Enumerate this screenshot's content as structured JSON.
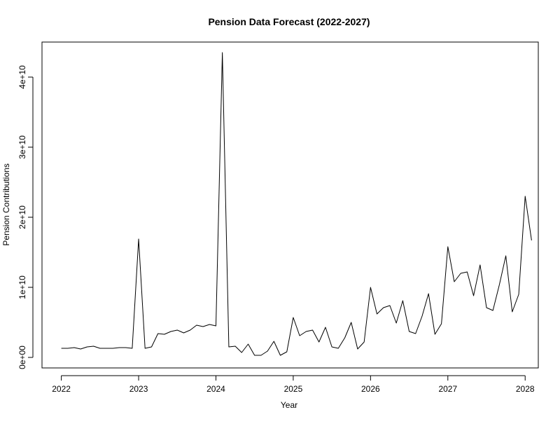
{
  "chart_data": {
    "type": "line",
    "title": "Pension Data Forecast (2022-2027)",
    "xlabel": "Year",
    "ylabel": "Pension Contributions",
    "xlim": [
      2021.75,
      2028.17
    ],
    "ylim": [
      -1500000000,
      45000000000
    ],
    "grid": false,
    "legend": "none",
    "line_color": "#000000",
    "x_ticks": [
      2022,
      2023,
      2024,
      2025,
      2026,
      2027,
      2028
    ],
    "x_tick_labels": [
      "2022",
      "2023",
      "2024",
      "2025",
      "2026",
      "2027",
      "2028"
    ],
    "y_ticks": [
      0,
      10000000000,
      20000000000,
      30000000000,
      40000000000
    ],
    "y_tick_labels": [
      "0e+00",
      "1e+10",
      "2e+10",
      "3e+10",
      "4e+10"
    ],
    "series": [
      {
        "x": [
          2022.0,
          2022.083,
          2022.167,
          2022.25,
          2022.333,
          2022.417,
          2022.5,
          2022.583,
          2022.667,
          2022.75,
          2022.833,
          2022.917,
          2023.0,
          2023.083,
          2023.167,
          2023.25,
          2023.333,
          2023.417,
          2023.5,
          2023.583,
          2023.667,
          2023.75,
          2023.833,
          2023.917,
          2024.0,
          2024.083,
          2024.167,
          2024.25,
          2024.333,
          2024.417,
          2024.5,
          2024.583,
          2024.667,
          2024.75,
          2024.833,
          2024.917,
          2025.0,
          2025.083,
          2025.167,
          2025.25,
          2025.333,
          2025.417,
          2025.5,
          2025.583,
          2025.667,
          2025.75,
          2025.833,
          2025.917,
          2026.0,
          2026.083,
          2026.167,
          2026.25,
          2026.333,
          2026.417,
          2026.5,
          2026.583,
          2026.667,
          2026.75,
          2026.833,
          2026.917,
          2027.0,
          2027.083,
          2027.167,
          2027.25,
          2027.333,
          2027.417,
          2027.5,
          2027.583,
          2027.667,
          2027.75,
          2027.833,
          2027.917,
          2028.0,
          2028.083
        ],
        "y": [
          1300000000,
          1300000000,
          1400000000,
          1200000000,
          1500000000,
          1600000000,
          1300000000,
          1300000000,
          1300000000,
          1400000000,
          1400000000,
          1300000000,
          16900000000,
          1300000000,
          1500000000,
          3400000000,
          3300000000,
          3700000000,
          3900000000,
          3500000000,
          3900000000,
          4600000000,
          4400000000,
          4700000000,
          4500000000,
          43500000000,
          1500000000,
          1600000000,
          700000000,
          1900000000,
          300000000,
          300000000,
          900000000,
          2300000000,
          300000000,
          800000000,
          5700000000,
          3100000000,
          3700000000,
          3900000000,
          2200000000,
          4300000000,
          1500000000,
          1300000000,
          2800000000,
          5000000000,
          1200000000,
          2200000000,
          10000000000,
          6200000000,
          7100000000,
          7400000000,
          4900000000,
          8100000000,
          3700000000,
          3400000000,
          5900000000,
          9100000000,
          3300000000,
          4800000000,
          15800000000,
          10800000000,
          12000000000,
          12200000000,
          8800000000,
          13200000000,
          7100000000,
          6700000000,
          10400000000,
          14500000000,
          6500000000,
          9000000000,
          23000000000,
          16700000000
        ]
      }
    ]
  }
}
